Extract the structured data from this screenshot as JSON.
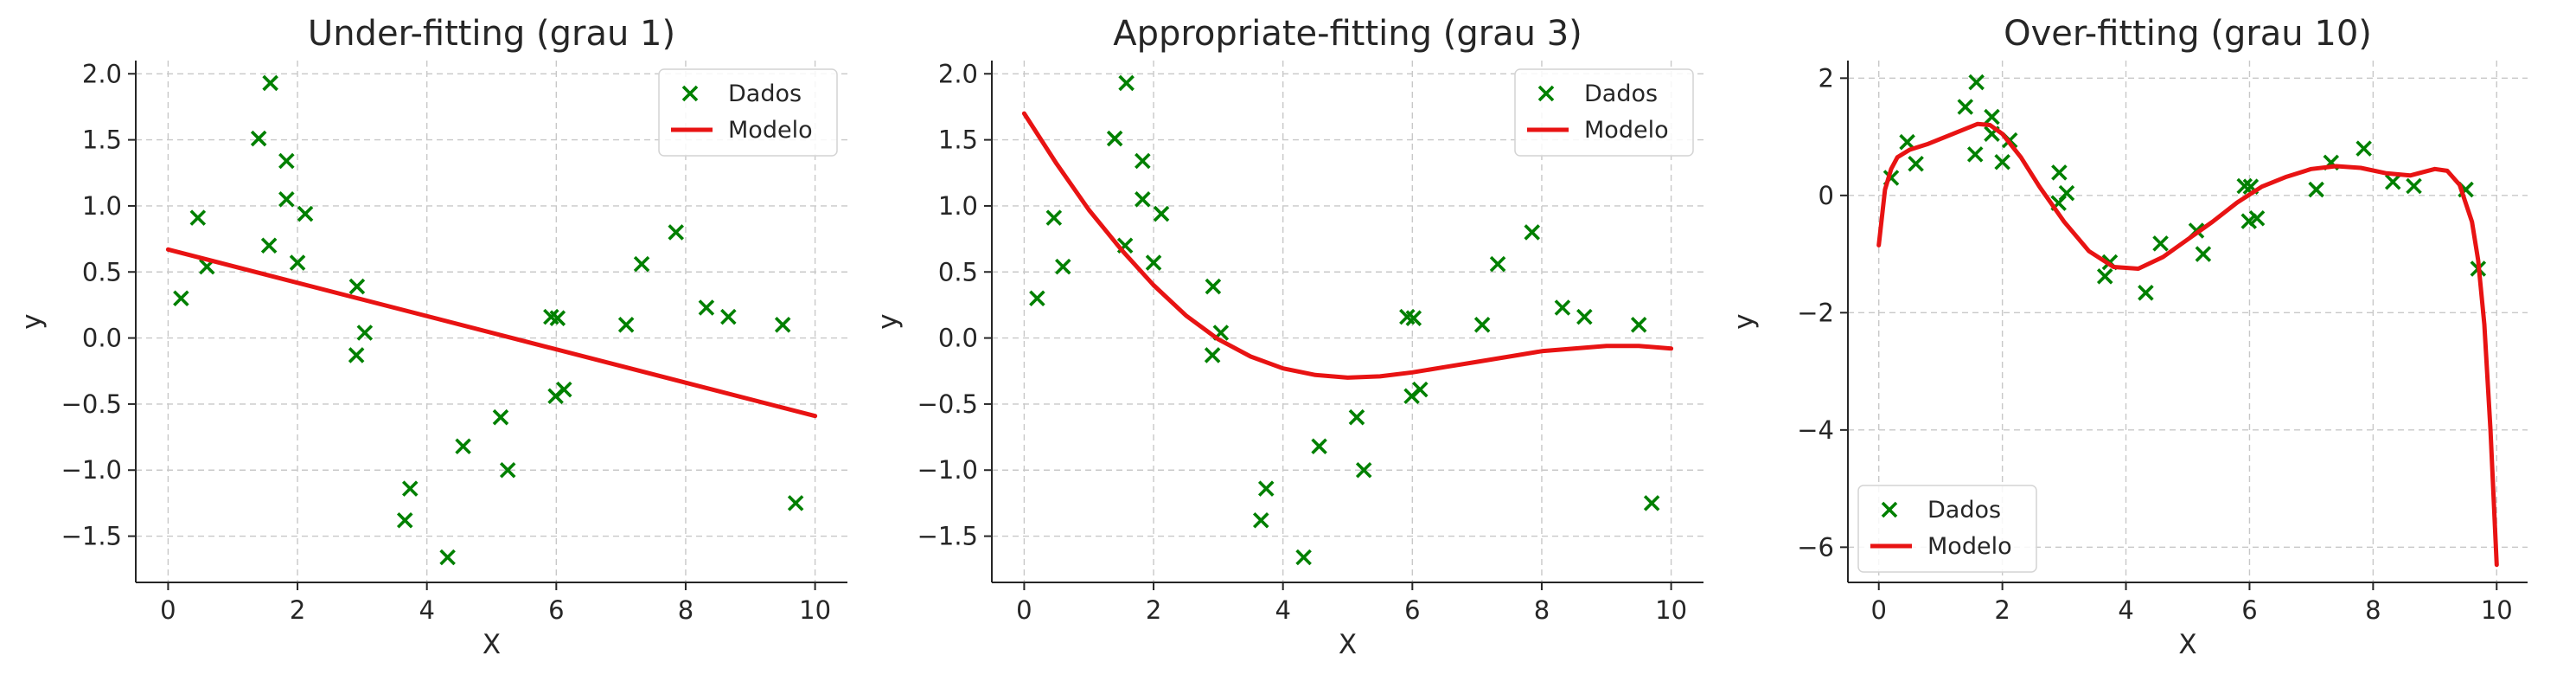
{
  "colors": {
    "data": "#008000",
    "model": "#e81313",
    "text": "#262626",
    "grid": "#c8c8c8"
  },
  "chart_data": [
    {
      "type": "scatter",
      "title": "Under-fitting (grau 1)",
      "xlabel": "X",
      "ylabel": "y",
      "xlim": [
        -0.5,
        10.5
      ],
      "ylim": [
        -1.85,
        2.1
      ],
      "xticks": [
        0,
        2,
        4,
        6,
        8,
        10
      ],
      "yticks": [
        -1.5,
        -1.0,
        -0.5,
        0.0,
        0.5,
        1.0,
        1.5,
        2.0
      ],
      "ytick_labels": [
        "−1.5",
        "−1.0",
        "−0.5",
        "0.0",
        "0.5",
        "1.0",
        "1.5",
        "2.0"
      ],
      "grid": true,
      "legend_position": "top-right",
      "legend": [
        "Dados",
        "Modelo"
      ],
      "series": [
        {
          "name": "Dados",
          "kind": "scatter",
          "marker": "x",
          "points": [
            [
              0.2,
              0.3
            ],
            [
              0.46,
              0.91
            ],
            [
              0.6,
              0.54
            ],
            [
              1.4,
              1.51
            ],
            [
              1.56,
              0.7
            ],
            [
              1.58,
              1.93
            ],
            [
              1.83,
              1.34
            ],
            [
              1.83,
              1.05
            ],
            [
              2.0,
              0.57
            ],
            [
              2.12,
              0.94
            ],
            [
              2.91,
              -0.13
            ],
            [
              2.92,
              0.39
            ],
            [
              3.04,
              0.04
            ],
            [
              3.66,
              -1.38
            ],
            [
              3.74,
              -1.14
            ],
            [
              4.32,
              -1.66
            ],
            [
              4.56,
              -0.82
            ],
            [
              5.14,
              -0.6
            ],
            [
              5.25,
              -1.0
            ],
            [
              5.92,
              0.16
            ],
            [
              5.99,
              -0.44
            ],
            [
              6.02,
              0.15
            ],
            [
              6.12,
              -0.39
            ],
            [
              7.08,
              0.1
            ],
            [
              7.32,
              0.56
            ],
            [
              7.85,
              0.8
            ],
            [
              8.32,
              0.23
            ],
            [
              8.66,
              0.16
            ],
            [
              9.5,
              0.1
            ],
            [
              9.7,
              -1.25
            ]
          ]
        },
        {
          "name": "Modelo",
          "kind": "line",
          "points": [
            [
              0,
              0.67
            ],
            [
              10,
              -0.59
            ]
          ]
        }
      ]
    },
    {
      "type": "scatter",
      "title": "Appropriate-fitting (grau 3)",
      "xlabel": "X",
      "ylabel": "y",
      "xlim": [
        -0.5,
        10.5
      ],
      "ylim": [
        -1.85,
        2.1
      ],
      "xticks": [
        0,
        2,
        4,
        6,
        8,
        10
      ],
      "yticks": [
        -1.5,
        -1.0,
        -0.5,
        0.0,
        0.5,
        1.0,
        1.5,
        2.0
      ],
      "ytick_labels": [
        "−1.5",
        "−1.0",
        "−0.5",
        "0.0",
        "0.5",
        "1.0",
        "1.5",
        "2.0"
      ],
      "grid": true,
      "legend_position": "top-right",
      "legend": [
        "Dados",
        "Modelo"
      ],
      "series": [
        {
          "name": "Dados",
          "kind": "scatter",
          "marker": "x",
          "points": [
            [
              0.2,
              0.3
            ],
            [
              0.46,
              0.91
            ],
            [
              0.6,
              0.54
            ],
            [
              1.4,
              1.51
            ],
            [
              1.56,
              0.7
            ],
            [
              1.58,
              1.93
            ],
            [
              1.83,
              1.34
            ],
            [
              1.83,
              1.05
            ],
            [
              2.0,
              0.57
            ],
            [
              2.12,
              0.94
            ],
            [
              2.91,
              -0.13
            ],
            [
              2.92,
              0.39
            ],
            [
              3.04,
              0.04
            ],
            [
              3.66,
              -1.38
            ],
            [
              3.74,
              -1.14
            ],
            [
              4.32,
              -1.66
            ],
            [
              4.56,
              -0.82
            ],
            [
              5.14,
              -0.6
            ],
            [
              5.25,
              -1.0
            ],
            [
              5.92,
              0.16
            ],
            [
              5.99,
              -0.44
            ],
            [
              6.02,
              0.15
            ],
            [
              6.12,
              -0.39
            ],
            [
              7.08,
              0.1
            ],
            [
              7.32,
              0.56
            ],
            [
              7.85,
              0.8
            ],
            [
              8.32,
              0.23
            ],
            [
              8.66,
              0.16
            ],
            [
              9.5,
              0.1
            ],
            [
              9.7,
              -1.25
            ]
          ]
        },
        {
          "name": "Modelo",
          "kind": "line",
          "points": [
            [
              0,
              1.7
            ],
            [
              0.5,
              1.32
            ],
            [
              1,
              0.97
            ],
            [
              1.5,
              0.67
            ],
            [
              2,
              0.4
            ],
            [
              2.5,
              0.17
            ],
            [
              3,
              -0.01
            ],
            [
              3.5,
              -0.14
            ],
            [
              4,
              -0.23
            ],
            [
              4.5,
              -0.28
            ],
            [
              5,
              -0.3
            ],
            [
              5.5,
              -0.29
            ],
            [
              6,
              -0.26
            ],
            [
              6.5,
              -0.22
            ],
            [
              7,
              -0.18
            ],
            [
              7.5,
              -0.14
            ],
            [
              8,
              -0.1
            ],
            [
              8.5,
              -0.08
            ],
            [
              9,
              -0.06
            ],
            [
              9.5,
              -0.06
            ],
            [
              10,
              -0.08
            ]
          ]
        }
      ]
    },
    {
      "type": "scatter",
      "title": "Over-fitting (grau 10)",
      "xlabel": "X",
      "ylabel": "y",
      "xlim": [
        -0.5,
        10.5
      ],
      "ylim": [
        -6.6,
        2.3
      ],
      "xticks": [
        0,
        2,
        4,
        6,
        8,
        10
      ],
      "yticks": [
        -6,
        -4,
        -2,
        0,
        2
      ],
      "ytick_labels": [
        "−6",
        "−4",
        "−2",
        "0",
        "2"
      ],
      "grid": true,
      "legend_position": "bottom-left",
      "legend": [
        "Dados",
        "Modelo"
      ],
      "series": [
        {
          "name": "Dados",
          "kind": "scatter",
          "marker": "x",
          "points": [
            [
              0.2,
              0.3
            ],
            [
              0.46,
              0.91
            ],
            [
              0.6,
              0.54
            ],
            [
              1.4,
              1.51
            ],
            [
              1.56,
              0.7
            ],
            [
              1.58,
              1.93
            ],
            [
              1.83,
              1.34
            ],
            [
              1.83,
              1.05
            ],
            [
              2.0,
              0.57
            ],
            [
              2.12,
              0.94
            ],
            [
              2.91,
              -0.13
            ],
            [
              2.92,
              0.39
            ],
            [
              3.04,
              0.04
            ],
            [
              3.66,
              -1.38
            ],
            [
              3.74,
              -1.14
            ],
            [
              4.32,
              -1.66
            ],
            [
              4.56,
              -0.82
            ],
            [
              5.14,
              -0.6
            ],
            [
              5.25,
              -1.0
            ],
            [
              5.92,
              0.16
            ],
            [
              5.99,
              -0.44
            ],
            [
              6.02,
              0.15
            ],
            [
              6.12,
              -0.39
            ],
            [
              7.08,
              0.1
            ],
            [
              7.32,
              0.56
            ],
            [
              7.85,
              0.8
            ],
            [
              8.32,
              0.23
            ],
            [
              8.66,
              0.16
            ],
            [
              9.5,
              0.1
            ],
            [
              9.7,
              -1.25
            ]
          ]
        },
        {
          "name": "Modelo",
          "kind": "line",
          "points": [
            [
              0,
              -0.85
            ],
            [
              0.1,
              0.1
            ],
            [
              0.2,
              0.45
            ],
            [
              0.3,
              0.65
            ],
            [
              0.5,
              0.78
            ],
            [
              0.8,
              0.88
            ],
            [
              1.2,
              1.05
            ],
            [
              1.6,
              1.22
            ],
            [
              1.8,
              1.2
            ],
            [
              2.0,
              1.05
            ],
            [
              2.3,
              0.65
            ],
            [
              2.6,
              0.15
            ],
            [
              3.0,
              -0.45
            ],
            [
              3.4,
              -0.95
            ],
            [
              3.8,
              -1.22
            ],
            [
              4.2,
              -1.25
            ],
            [
              4.6,
              -1.05
            ],
            [
              5.0,
              -0.75
            ],
            [
              5.4,
              -0.45
            ],
            [
              5.8,
              -0.12
            ],
            [
              6.2,
              0.15
            ],
            [
              6.6,
              0.32
            ],
            [
              7.0,
              0.45
            ],
            [
              7.4,
              0.5
            ],
            [
              7.8,
              0.47
            ],
            [
              8.2,
              0.38
            ],
            [
              8.6,
              0.34
            ],
            [
              9.0,
              0.45
            ],
            [
              9.2,
              0.42
            ],
            [
              9.4,
              0.18
            ],
            [
              9.6,
              -0.45
            ],
            [
              9.7,
              -1.1
            ],
            [
              9.8,
              -2.2
            ],
            [
              9.9,
              -4.0
            ],
            [
              10.0,
              -6.3
            ]
          ]
        }
      ]
    }
  ]
}
